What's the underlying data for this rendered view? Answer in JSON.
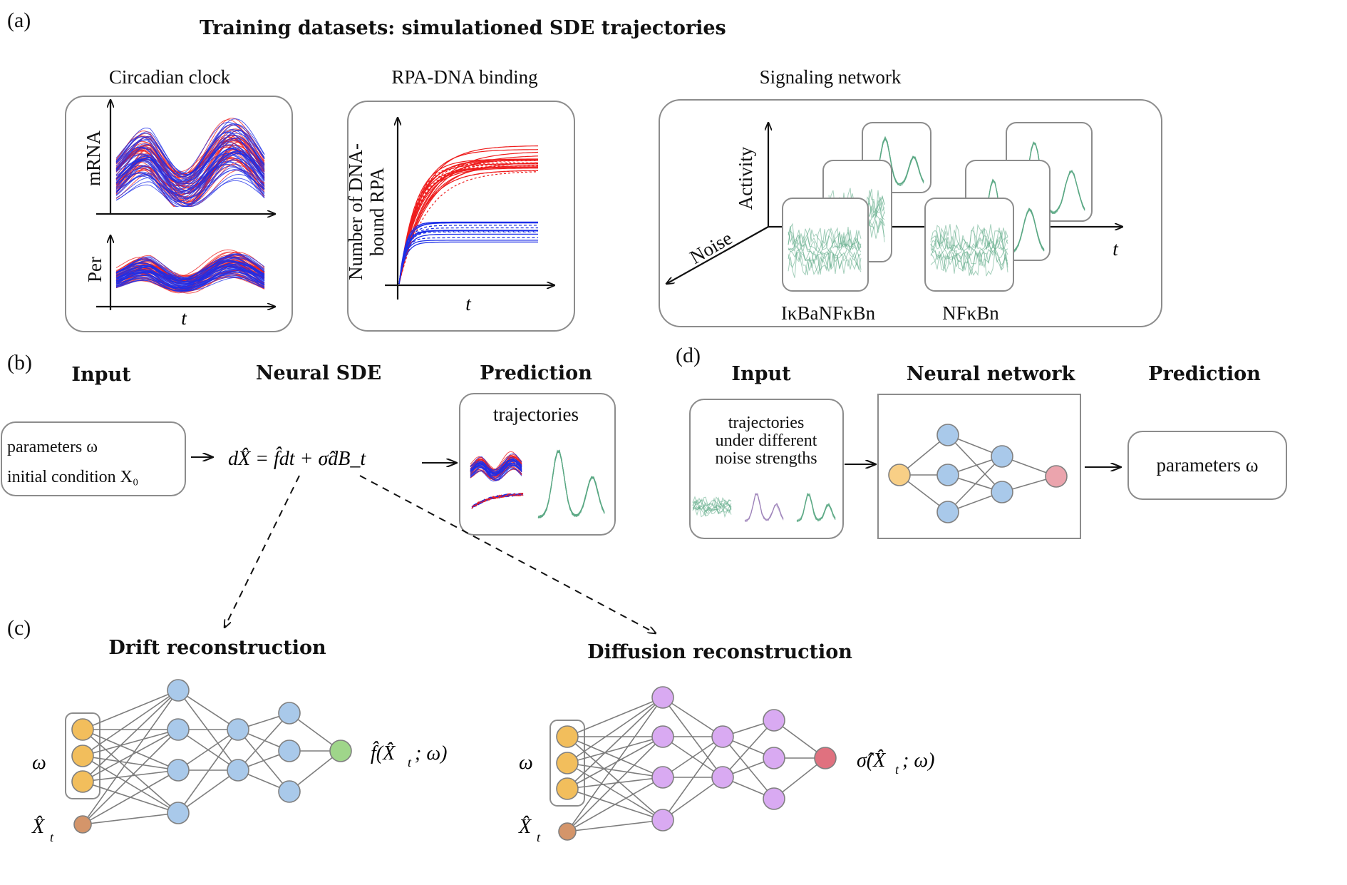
{
  "colors": {
    "input_node": "#f2be5c",
    "hidden_node_drift": "#a9c9ea",
    "hidden_node_diffusion": "#d9aaf2",
    "drift_output": "#9fd68a",
    "diffusion_output": "#e0717f",
    "xt_node": "#d4956a",
    "trajectory_red": "#ee1c1c",
    "trajectory_blue": "#1c2ee8",
    "trajectory_green": "#5aa884",
    "d_output": "#eba4ad",
    "d_input": "#f8cf86"
  },
  "panel_a": {
    "letter": "(a)",
    "title": "Training datasets: simulationed SDE trajectories",
    "circadian": {
      "title": "Circadian clock",
      "y_top": "mRNA",
      "y_bottom": "Per",
      "x": "t"
    },
    "rpa": {
      "title": "RPA-DNA binding",
      "y_line1": "Number of DNA-",
      "y_line2": "bound RPA",
      "x": "t"
    },
    "signaling": {
      "title": "Signaling network",
      "y": "Activity",
      "z": "Noise",
      "x": "t",
      "group1": "IκBaNFκBn",
      "group2": "NFκBn"
    }
  },
  "panel_b": {
    "letter": "(b)",
    "input_title": "Input",
    "input_line1": "parameters  ω",
    "input_line2": "initial condition X₀",
    "model_title": "Neural SDE",
    "equation": "dX̂ = f̂dt + σ̂dB_t",
    "prediction_title": "Prediction",
    "prediction_label": "trajectories"
  },
  "panel_c": {
    "letter": "(c)",
    "drift_title": "Drift reconstruction",
    "diffusion_title": "Diffusion reconstruction",
    "omega": "ω",
    "xt": "X̂",
    "xt_sub": "t",
    "drift_output_label": "f̂(X̂",
    "diffusion_output_label": "σ̂(X̂",
    "output_tail": "; ω)"
  },
  "panel_d": {
    "letter": "(d)",
    "input_title": "Input",
    "input_line1": "trajectories",
    "input_line2": "under different",
    "input_line3": "noise strengths",
    "model_title": "Neural network",
    "prediction_title": "Prediction",
    "prediction_label": "parameters ω"
  }
}
